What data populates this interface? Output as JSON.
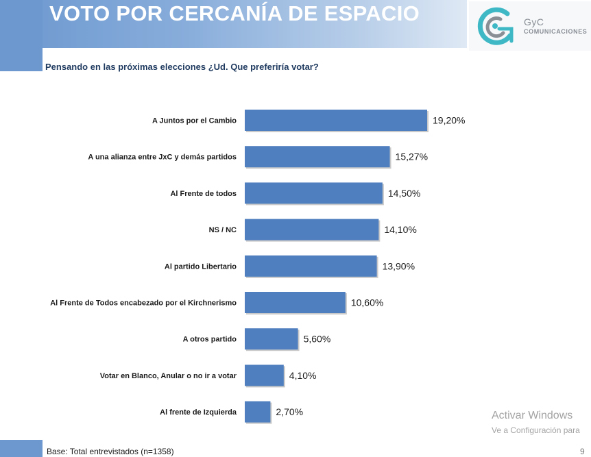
{
  "slide": {
    "title": "VOTO POR CERCANÍA DE ESPACIO",
    "question": "Pensando en las próximas elecciones  ¿Ud. Que preferiría votar?",
    "footnote": "Base: Total entrevistados (n=1358)",
    "page_number": "9",
    "colors": {
      "header": "#6c98cf",
      "bar": "#4f7fbe",
      "logo_teal": "#3fb8c6"
    }
  },
  "logo": {
    "name": "GyC",
    "sub": "COMUNICACIONES",
    "icon": "gyc-logo-icon"
  },
  "watermark": {
    "line1": "Activar Windows",
    "line2": "Ve a Configuración para"
  },
  "chart_data": {
    "type": "bar",
    "orientation": "horizontal",
    "categories": [
      "A Juntos por el Cambio",
      "A una alianza entre JxC y demás partidos",
      "Al Frente de todos",
      "NS / NC",
      "Al partido Libertario",
      "Al Frente de Todos encabezado por el Kirchnerismo",
      "A otros partido",
      "Votar en Blanco, Anular o no ir a votar",
      "Al frente de Izquierda"
    ],
    "values": [
      19.2,
      15.27,
      14.5,
      14.1,
      13.9,
      10.6,
      5.6,
      4.1,
      2.7
    ],
    "value_labels": [
      "19,20%",
      "15,27%",
      "14,50%",
      "14,10%",
      "13,90%",
      "10,60%",
      "5,60%",
      "4,10%",
      "2,70%"
    ],
    "xlim": [
      0,
      19.2
    ],
    "grid": false,
    "legend": "none"
  }
}
